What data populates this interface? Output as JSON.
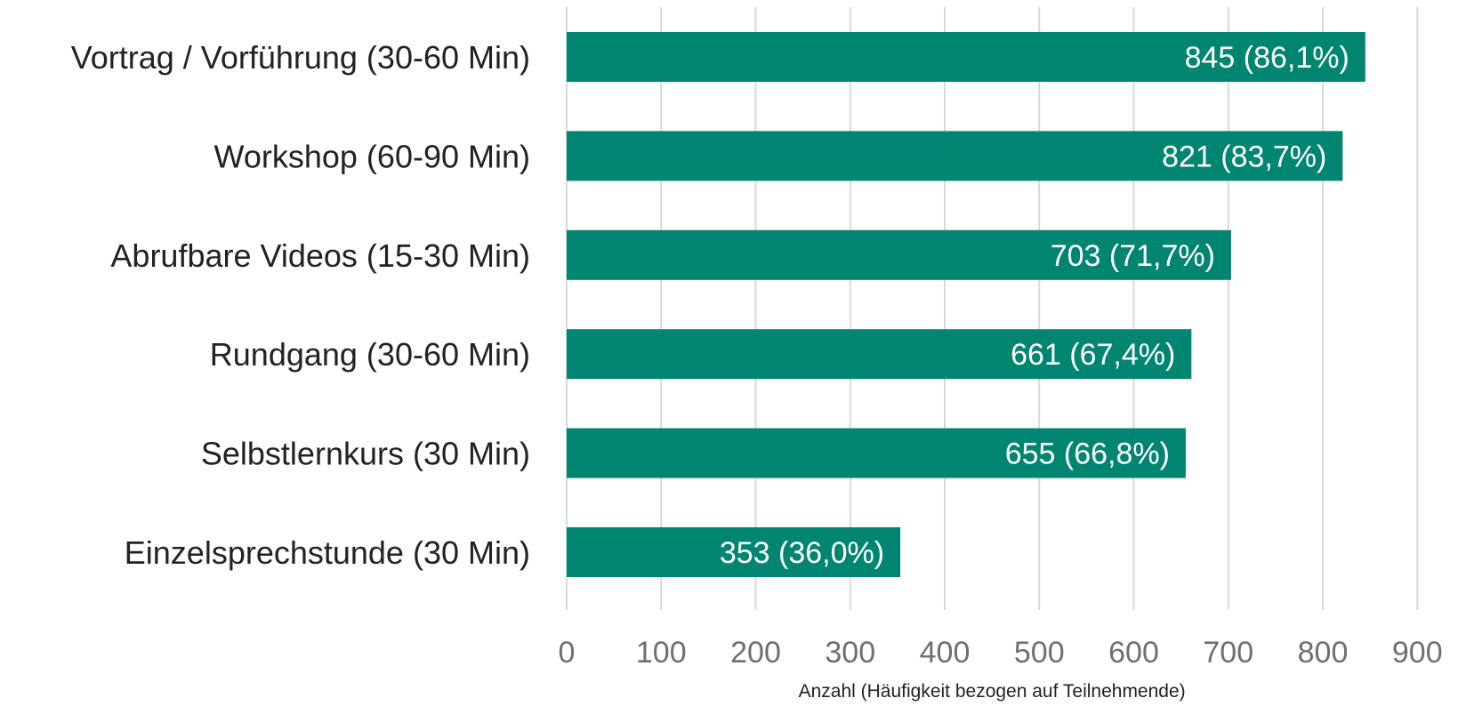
{
  "chart_data": {
    "type": "bar",
    "orientation": "horizontal",
    "categories": [
      "Vortrag / Vorführung (30-60 Min)",
      "Workshop (60-90 Min)",
      "Abrufbare Videos (15-30 Min)",
      "Rundgang (30-60 Min)",
      "Selbstlernkurs (30 Min)",
      "Einzelsprechstunde (30 Min)"
    ],
    "values": [
      845,
      821,
      703,
      661,
      655,
      353
    ],
    "data_labels": [
      "845 (86,1%)",
      "821 (83,7%)",
      "703 (71,7%)",
      "661 (67,4%)",
      "655 (66,8%)",
      "353 (36,0%)"
    ],
    "xlabel": "Anzahl (Häufigkeit bezogen auf Teilnehmende)",
    "ylabel": "",
    "xlim": [
      0,
      900
    ],
    "xticks": [
      0,
      100,
      200,
      300,
      400,
      500,
      600,
      700,
      800,
      900
    ],
    "grid": "vertical",
    "colors": {
      "bar": "#008570",
      "grid": "#d9d9d9",
      "tick_text": "#6f6f6f",
      "label_text": "#222222",
      "value_text": "#ffffff"
    }
  }
}
